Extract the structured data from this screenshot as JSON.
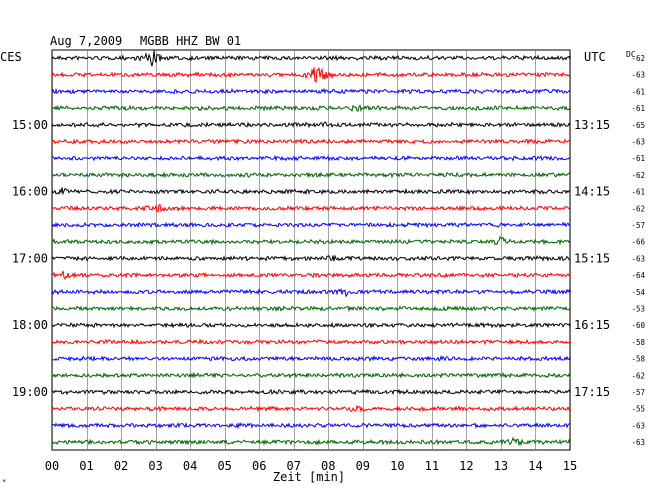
{
  "header": {
    "date": "Aug 7,2009",
    "station": "MGBB HHZ BW 01",
    "left_zone": "CES",
    "right_zone": "UTC",
    "dc_label": "DC"
  },
  "chart_data": {
    "type": "line",
    "title": "Aug 7,2009   MGBB HHZ BW 01",
    "xlabel": "Zeit [min]",
    "ylabel": "",
    "xlim": [
      0,
      15
    ],
    "x_ticks": [
      "00",
      "01",
      "02",
      "03",
      "04",
      "05",
      "06",
      "07",
      "08",
      "09",
      "10",
      "11",
      "12",
      "13",
      "14",
      "15"
    ],
    "grid": true,
    "trace_colors": [
      "#000000",
      "#ff0000",
      "#0000ff",
      "#006400"
    ],
    "left_time_labels": [
      {
        "row": 4,
        "label": "15:00"
      },
      {
        "row": 8,
        "label": "16:00"
      },
      {
        "row": 12,
        "label": "17:00"
      },
      {
        "row": 16,
        "label": "18:00"
      },
      {
        "row": 20,
        "label": "19:00"
      }
    ],
    "right_time_labels": [
      {
        "row": 4,
        "label": "13:15"
      },
      {
        "row": 8,
        "label": "14:15"
      },
      {
        "row": 12,
        "label": "15:15"
      },
      {
        "row": 16,
        "label": "16:15"
      },
      {
        "row": 20,
        "label": "17:15"
      }
    ],
    "dc_offsets": [
      -62,
      -63,
      -61,
      -61,
      -65,
      -63,
      -61,
      -62,
      -61,
      -62,
      -57,
      -66,
      -63,
      -64,
      -54,
      -53,
      -60,
      -58,
      -58,
      -62,
      -57,
      -55,
      -63,
      -63
    ],
    "events": [
      {
        "row": 0,
        "minute": 2.9,
        "amplitude": 8
      },
      {
        "row": 1,
        "minute": 7.7,
        "amplitude": 14
      },
      {
        "row": 3,
        "minute": 8.8,
        "amplitude": 3
      },
      {
        "row": 4,
        "minute": 7.8,
        "amplitude": 2
      },
      {
        "row": 8,
        "minute": 0.3,
        "amplitude": 3
      },
      {
        "row": 9,
        "minute": 3.1,
        "amplitude": 4
      },
      {
        "row": 11,
        "minute": 13.0,
        "amplitude": 4
      },
      {
        "row": 12,
        "minute": 8.1,
        "amplitude": 2
      },
      {
        "row": 13,
        "minute": 0.3,
        "amplitude": 4
      },
      {
        "row": 14,
        "minute": 8.5,
        "amplitude": 3
      },
      {
        "row": 21,
        "minute": 8.8,
        "amplitude": 2
      },
      {
        "row": 23,
        "minute": 13.4,
        "amplitude": 3
      }
    ]
  }
}
